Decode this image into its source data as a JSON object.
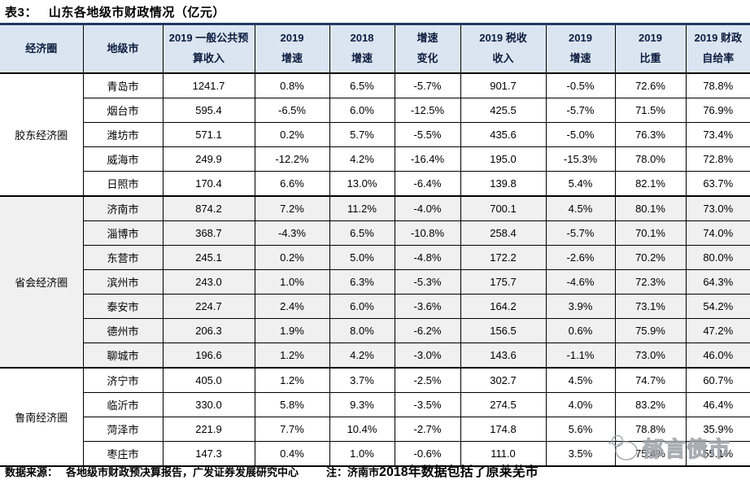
{
  "title": {
    "table_no": "表3：",
    "text": "山东各地级市财政情况（亿元）"
  },
  "table": {
    "headers": [
      "经济圈",
      "地级市",
      "2019 一般公共预\n算收入",
      "2019\n增速",
      "2018\n增速",
      "增速\n变化",
      "2019 税收\n收入",
      "2019\n增速",
      "2019\n比重",
      "2019 财政\n自给率"
    ],
    "groups": [
      {
        "name": "胶东经济圈",
        "shaded": false,
        "rows": [
          {
            "city": "青岛市",
            "values": [
              "1241.7",
              "0.8%",
              "6.5%",
              "-5.7%",
              "901.7",
              "-0.5%",
              "72.6%",
              "78.8%"
            ]
          },
          {
            "city": "烟台市",
            "values": [
              "595.4",
              "-6.5%",
              "6.0%",
              "-12.5%",
              "425.5",
              "-5.7%",
              "71.5%",
              "76.9%"
            ]
          },
          {
            "city": "潍坊市",
            "values": [
              "571.1",
              "0.2%",
              "5.7%",
              "-5.5%",
              "435.6",
              "-5.0%",
              "76.3%",
              "73.4%"
            ]
          },
          {
            "city": "威海市",
            "values": [
              "249.9",
              "-12.2%",
              "4.2%",
              "-16.4%",
              "195.0",
              "-15.3%",
              "78.0%",
              "72.8%"
            ]
          },
          {
            "city": "日照市",
            "values": [
              "170.4",
              "6.6%",
              "13.0%",
              "-6.4%",
              "139.8",
              "5.4%",
              "82.1%",
              "63.7%"
            ]
          }
        ]
      },
      {
        "name": "省会经济圈",
        "shaded": true,
        "rows": [
          {
            "city": "济南市",
            "values": [
              "874.2",
              "7.2%",
              "11.2%",
              "-4.0%",
              "700.1",
              "4.5%",
              "80.1%",
              "73.0%"
            ]
          },
          {
            "city": "淄博市",
            "values": [
              "368.7",
              "-4.3%",
              "6.5%",
              "-10.8%",
              "258.4",
              "-5.7%",
              "70.1%",
              "74.0%"
            ]
          },
          {
            "city": "东营市",
            "values": [
              "245.1",
              "0.2%",
              "5.0%",
              "-4.8%",
              "172.2",
              "-2.6%",
              "70.2%",
              "80.0%"
            ]
          },
          {
            "city": "滨州市",
            "values": [
              "243.0",
              "1.0%",
              "6.3%",
              "-5.3%",
              "175.7",
              "-4.6%",
              "72.3%",
              "64.3%"
            ]
          },
          {
            "city": "泰安市",
            "values": [
              "224.7",
              "2.4%",
              "6.0%",
              "-3.6%",
              "164.2",
              "3.9%",
              "73.1%",
              "54.2%"
            ]
          },
          {
            "city": "德州市",
            "values": [
              "206.3",
              "1.9%",
              "8.0%",
              "-6.2%",
              "156.5",
              "0.6%",
              "75.9%",
              "47.2%"
            ]
          },
          {
            "city": "聊城市",
            "values": [
              "196.6",
              "1.2%",
              "4.2%",
              "-3.0%",
              "143.6",
              "-1.1%",
              "73.0%",
              "46.0%"
            ]
          }
        ]
      },
      {
        "name": "鲁南经济圈",
        "shaded": false,
        "rows": [
          {
            "city": "济宁市",
            "values": [
              "405.0",
              "1.2%",
              "3.7%",
              "-2.5%",
              "302.7",
              "4.5%",
              "74.7%",
              "60.7%"
            ]
          },
          {
            "city": "临沂市",
            "values": [
              "330.0",
              "5.8%",
              "9.3%",
              "-3.5%",
              "274.5",
              "4.0%",
              "83.2%",
              "46.4%"
            ]
          },
          {
            "city": "菏泽市",
            "values": [
              "221.9",
              "7.7%",
              "10.4%",
              "-2.7%",
              "174.8",
              "5.6%",
              "78.8%",
              "35.9%"
            ]
          },
          {
            "city": "枣庄市",
            "values": [
              "147.3",
              "0.4%",
              "1.0%",
              "-0.6%",
              "111.0",
              "3.5%",
              "75.4%",
              "55.1%"
            ]
          }
        ]
      }
    ]
  },
  "footer": {
    "source_label": "数据来源：",
    "source_text": "各地级市财政预决算报告，广发证券发展研究中心",
    "note_prefix": "注：济南市",
    "note_emphasis": "2018年数据包括了原莱芜市"
  },
  "watermark": {
    "text": "郁言债市"
  },
  "colors": {
    "header_bg": "#dbe5f1",
    "accent_line": "#1f3864",
    "shaded_row_bg": "#f0f0f0",
    "border": "#000000",
    "watermark_stroke": "#9aa0a6"
  }
}
